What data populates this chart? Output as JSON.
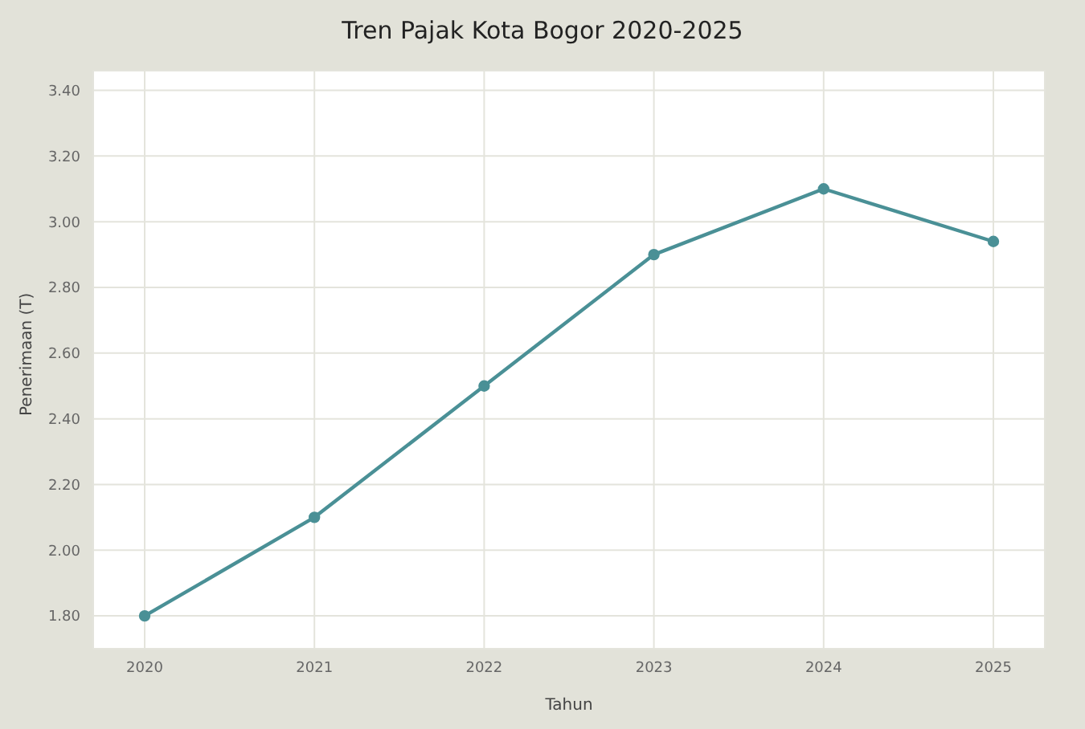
{
  "chart_data": {
    "type": "line",
    "title": "Tren Pajak Kota Bogor 2020-2025",
    "xlabel": "Tahun",
    "ylabel": "Penerimaan (T)",
    "categories": [
      "2020",
      "2021",
      "2022",
      "2023",
      "2024",
      "2025"
    ],
    "series": [
      {
        "color": "#4a9096",
        "values": [
          1.8,
          2.1,
          2.5,
          2.9,
          3.1,
          2.94
        ]
      }
    ],
    "ylim": [
      1.7,
      3.46
    ],
    "yticks": [
      {
        "value": 1.8,
        "label": "1.80"
      },
      {
        "value": 2.0,
        "label": "2.00"
      },
      {
        "value": 2.2,
        "label": "2.20"
      },
      {
        "value": 2.4,
        "label": "2.40"
      },
      {
        "value": 2.6,
        "label": "2.60"
      },
      {
        "value": 2.8,
        "label": "2.80"
      },
      {
        "value": 3.0,
        "label": "3.00"
      },
      {
        "value": 3.2,
        "label": "3.20"
      },
      {
        "value": 3.4,
        "label": "3.40"
      }
    ],
    "grid": true,
    "marker": "circle",
    "line_style": "solid"
  }
}
